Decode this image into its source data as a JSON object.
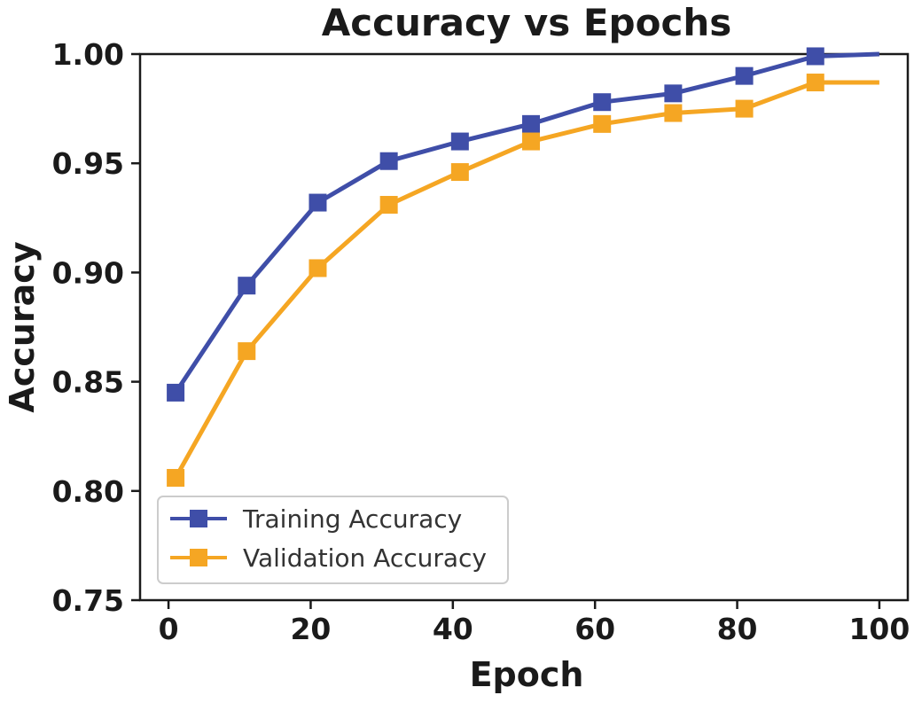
{
  "chart_data": {
    "type": "line",
    "title": "Accuracy vs Epochs",
    "xlabel": "Epoch",
    "ylabel": "Accuracy",
    "xlim": [
      -4,
      104
    ],
    "ylim": [
      0.75,
      1.0
    ],
    "x_ticks": [
      0,
      20,
      40,
      60,
      80,
      100
    ],
    "x_tick_labels": [
      "0",
      "20",
      "40",
      "60",
      "80",
      "100"
    ],
    "y_ticks": [
      0.75,
      0.8,
      0.85,
      0.9,
      0.95,
      1.0
    ],
    "y_tick_labels": [
      "0.75",
      "0.80",
      "0.85",
      "0.90",
      "0.95",
      "1.00"
    ],
    "grid": false,
    "legend_position": "lower-left",
    "x": [
      1,
      11,
      21,
      31,
      41,
      51,
      61,
      71,
      81,
      91,
      100
    ],
    "series": [
      {
        "name": "Training Accuracy",
        "color": "#3f4ea8",
        "marker": "square",
        "marker_at_last": false,
        "values": [
          0.845,
          0.894,
          0.932,
          0.951,
          0.96,
          0.968,
          0.978,
          0.982,
          0.99,
          0.999,
          1.0
        ]
      },
      {
        "name": "Validation Accuracy",
        "color": "#f5a623",
        "marker": "square",
        "marker_at_last": false,
        "values": [
          0.806,
          0.864,
          0.902,
          0.931,
          0.946,
          0.96,
          0.968,
          0.973,
          0.975,
          0.987,
          0.987
        ]
      }
    ]
  }
}
